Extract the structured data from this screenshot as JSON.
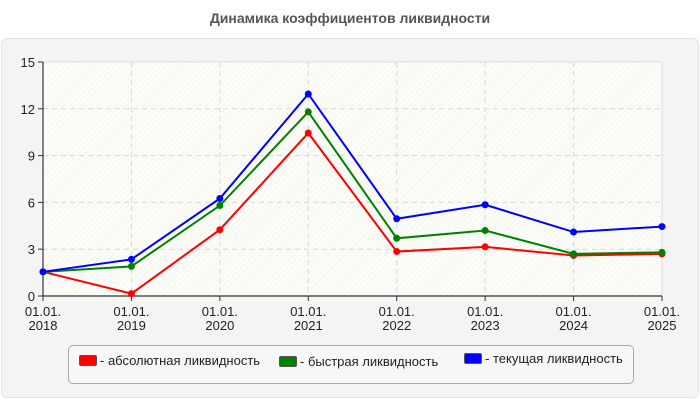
{
  "title": "Динамика коэффициентов ликвидности",
  "legend": {
    "items": [
      {
        "label": "- абсолютная ликвидность",
        "color": "#ff0000"
      },
      {
        "label": "- быстрая ликвидность",
        "color": "#008000"
      },
      {
        "label": "- текущая ликвидность",
        "color": "#0000ff"
      }
    ]
  },
  "chart_data": {
    "type": "line",
    "title": "Динамика коэффициентов ликвидности",
    "xlabel": "",
    "ylabel": "",
    "categories": [
      "01.01.\n2018",
      "01.01.\n2019",
      "01.01.\n2020",
      "01.01.\n2021",
      "01.01.\n2022",
      "01.01.\n2023",
      "01.01.\n2024",
      "01.01.\n2025"
    ],
    "x_tick_lines": [
      [
        "01.01.",
        "2018"
      ],
      [
        "01.01.",
        "2019"
      ],
      [
        "01.01.",
        "2020"
      ],
      [
        "01.01.",
        "2021"
      ],
      [
        "01.01.",
        "2022"
      ],
      [
        "01.01.",
        "2023"
      ],
      [
        "01.01.",
        "2024"
      ],
      [
        "01.01.",
        "2025"
      ]
    ],
    "yticks": [
      0,
      3,
      6,
      9,
      12,
      15
    ],
    "ylim": [
      0,
      15
    ],
    "grid": true,
    "legend_position": "bottom",
    "series": [
      {
        "name": "абсолютная ликвидность",
        "color": "#ff0000",
        "values": [
          1.55,
          0.15,
          4.25,
          10.45,
          2.85,
          3.15,
          2.6,
          2.7
        ]
      },
      {
        "name": "быстрая ликвидность",
        "color": "#008000",
        "values": [
          1.55,
          1.9,
          5.8,
          11.8,
          3.7,
          4.2,
          2.7,
          2.8
        ]
      },
      {
        "name": "текущая ликвидность",
        "color": "#0000ff",
        "values": [
          1.55,
          2.35,
          6.25,
          12.95,
          4.95,
          5.85,
          4.1,
          4.45
        ]
      }
    ]
  }
}
